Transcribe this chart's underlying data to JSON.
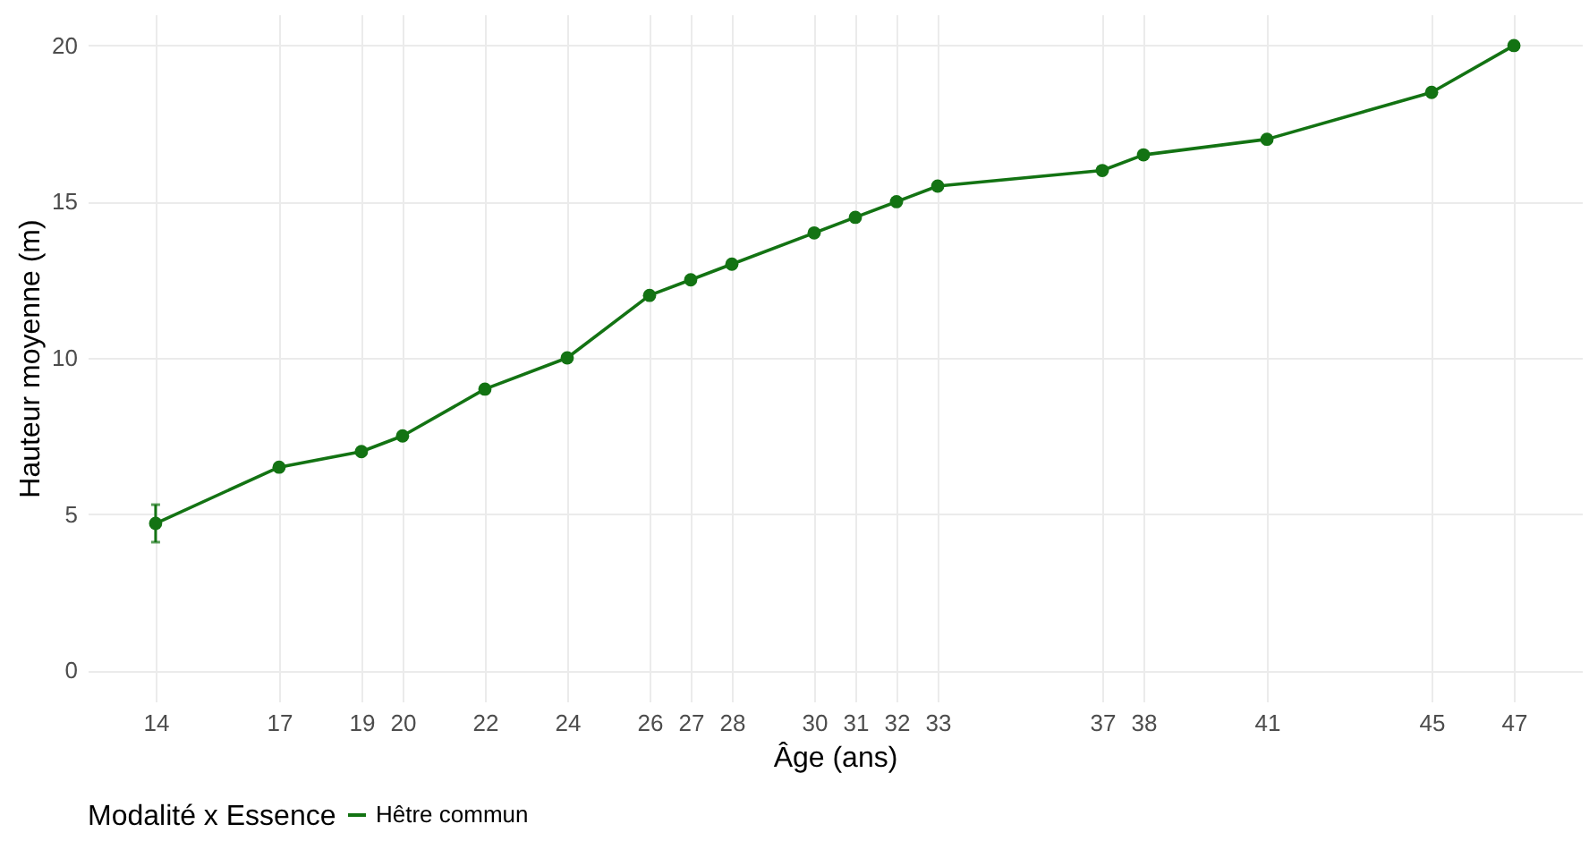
{
  "chart_data": {
    "type": "line",
    "xlabel": "Âge (ans)",
    "ylabel": "Hauteur moyenne (m)",
    "legend_title": "Modalité x Essence",
    "legend": "bottom",
    "grid": true,
    "marker": "circle",
    "line_style": "solid",
    "x": [
      14,
      17,
      19,
      20,
      22,
      24,
      26,
      27,
      28,
      30,
      31,
      32,
      33,
      37,
      38,
      41,
      45,
      47
    ],
    "xlim": [
      12.35,
      48.65
    ],
    "xticks": [
      14,
      17,
      19,
      20,
      22,
      24,
      26,
      27,
      28,
      30,
      31,
      32,
      33,
      37,
      38,
      41,
      45,
      47
    ],
    "ylim": [
      -1,
      21
    ],
    "yticks": [
      0,
      5,
      10,
      15,
      20
    ],
    "series": [
      {
        "name": "Hêtre commun",
        "color": "#137313",
        "values": [
          4.7,
          6.5,
          7,
          7.5,
          9,
          10,
          12,
          12.5,
          13,
          14,
          14.5,
          15,
          15.5,
          16,
          16.5,
          17,
          18.5,
          20
        ],
        "errors": [
          [
            4.1,
            5.3
          ],
          null,
          null,
          null,
          null,
          null,
          null,
          null,
          null,
          null,
          null,
          null,
          null,
          null,
          null,
          null,
          null,
          null
        ]
      }
    ]
  }
}
